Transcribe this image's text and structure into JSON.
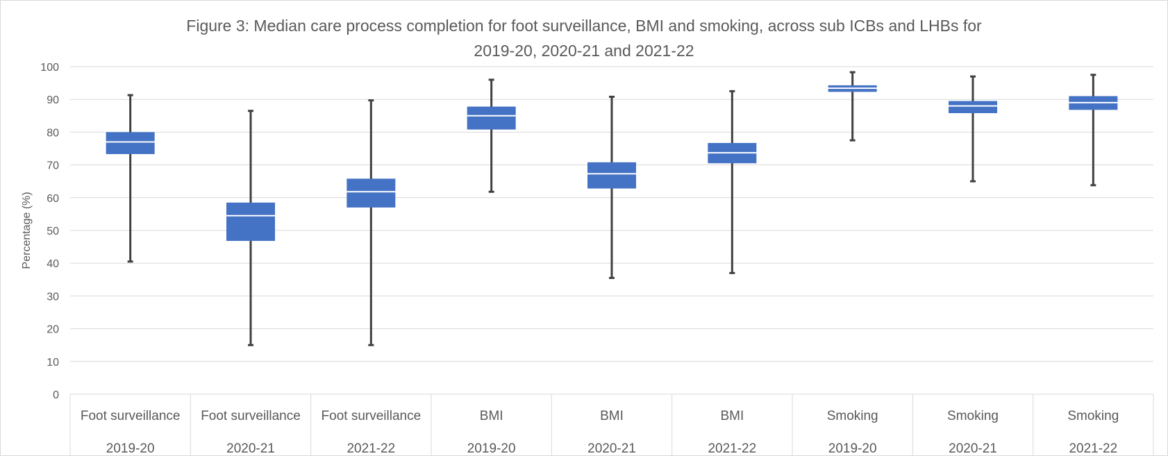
{
  "chart_data": {
    "type": "boxplot",
    "title": "Figure 3: Median care process completion for foot surveillance, BMI and smoking, across sub ICBs and LHBs for 2019-20, 2020-21 and 2021-22",
    "title_lines": [
      "Figure 3: Median care process completion for foot surveillance, BMI and smoking, across sub ICBs and LHBs for",
      "2019-20, 2020-21 and 2021-22"
    ],
    "ylabel": "Percentage (%)",
    "xlabel": "",
    "ylim": [
      0,
      100
    ],
    "ytick_step": 10,
    "yticks": [
      "0",
      "10",
      "20",
      "30",
      "40",
      "50",
      "60",
      "70",
      "80",
      "90",
      "100"
    ],
    "grid": true,
    "legend": "none",
    "colors": {
      "box": "#4472c4",
      "whisker": "#404040",
      "grid": "#d9d9d9",
      "text": "#595959",
      "median": "#ffffff"
    },
    "categories": [
      {
        "process": "Foot surveillance",
        "year": "2019-20",
        "min": 40.5,
        "q1": 73.3,
        "median": 77.0,
        "q3": 80.0,
        "max": 91.3
      },
      {
        "process": "Foot surveillance",
        "year": "2020-21",
        "min": 15.0,
        "q1": 46.8,
        "median": 54.5,
        "q3": 58.5,
        "max": 86.5
      },
      {
        "process": "Foot surveillance",
        "year": "2021-22",
        "min": 15.0,
        "q1": 57.0,
        "median": 61.8,
        "q3": 65.8,
        "max": 89.7
      },
      {
        "process": "BMI",
        "year": "2019-20",
        "min": 61.8,
        "q1": 80.8,
        "median": 85.0,
        "q3": 87.8,
        "max": 96.0
      },
      {
        "process": "BMI",
        "year": "2020-21",
        "min": 35.5,
        "q1": 62.8,
        "median": 67.3,
        "q3": 70.8,
        "max": 90.8
      },
      {
        "process": "BMI",
        "year": "2021-22",
        "min": 37.0,
        "q1": 70.5,
        "median": 73.7,
        "q3": 76.7,
        "max": 92.5
      },
      {
        "process": "Smoking",
        "year": "2019-20",
        "min": 77.5,
        "q1": 92.3,
        "median": 93.4,
        "q3": 94.3,
        "max": 98.3
      },
      {
        "process": "Smoking",
        "year": "2020-21",
        "min": 65.0,
        "q1": 85.8,
        "median": 88.0,
        "q3": 89.5,
        "max": 97.0
      },
      {
        "process": "Smoking",
        "year": "2021-22",
        "min": 63.8,
        "q1": 86.8,
        "median": 89.0,
        "q3": 91.0,
        "max": 97.5
      }
    ]
  }
}
